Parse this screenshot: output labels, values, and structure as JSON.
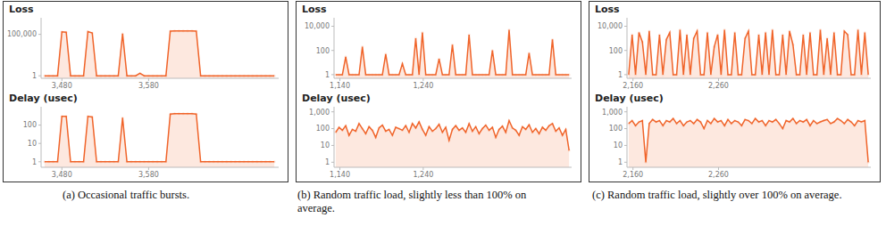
{
  "captions": [
    "(a) Occasional traffic bursts.",
    "(b) Random traffic load, slightly less than 100% on average.",
    "(c) Random traffic load, slightly over 100% on average."
  ],
  "chart_data": [
    {
      "type": "area",
      "title": "Loss",
      "color": "#f0642a",
      "marker": "circle",
      "log": "y",
      "x": [
        3460,
        3465,
        3470,
        3475,
        3480,
        3485,
        3490,
        3495,
        3500,
        3505,
        3510,
        3515,
        3520,
        3525,
        3530,
        3535,
        3540,
        3545,
        3550,
        3555,
        3560,
        3565,
        3570,
        3575,
        3580,
        3585,
        3590,
        3595,
        3600,
        3605,
        3610,
        3615,
        3620,
        3625,
        3630,
        3635,
        3640,
        3645,
        3650,
        3655,
        3660,
        3665,
        3670,
        3675,
        3680,
        3685,
        3690,
        3695,
        3700,
        3705,
        3710,
        3715,
        3720,
        3725
      ],
      "values": [
        1,
        1,
        1,
        1,
        200000,
        180000,
        1,
        1,
        1,
        1,
        220000,
        150000,
        1,
        1,
        1,
        1,
        1,
        1,
        120000,
        1,
        1,
        1,
        2,
        1,
        1,
        1,
        1,
        1,
        1,
        250000,
        260000,
        260000,
        260000,
        260000,
        260000,
        250000,
        1,
        1,
        1,
        1,
        1,
        1,
        1,
        1,
        1,
        1,
        1,
        1,
        1,
        1,
        1,
        1,
        1,
        1
      ],
      "xlim": [
        3456,
        3730
      ],
      "xticks": [
        {
          "value": 3480,
          "label": "3,480"
        },
        {
          "value": 3580,
          "label": "3,580"
        }
      ],
      "ylim": [
        0.5,
        10000000
      ],
      "yticks": [
        1,
        {
          "value": 100000,
          "label": "100,000"
        }
      ]
    },
    {
      "type": "area",
      "title": "Delay (usec)",
      "color": "#f0642a",
      "marker": "circle",
      "log": "y",
      "x": [
        3460,
        3465,
        3470,
        3475,
        3480,
        3485,
        3490,
        3495,
        3500,
        3505,
        3510,
        3515,
        3520,
        3525,
        3530,
        3535,
        3540,
        3545,
        3550,
        3555,
        3560,
        3565,
        3570,
        3575,
        3580,
        3585,
        3590,
        3595,
        3600,
        3605,
        3610,
        3615,
        3620,
        3625,
        3630,
        3635,
        3640,
        3645,
        3650,
        3655,
        3660,
        3665,
        3670,
        3675,
        3680,
        3685,
        3690,
        3695,
        3700,
        3705,
        3710,
        3715,
        3720,
        3725
      ],
      "values": [
        1,
        1,
        1,
        1,
        300,
        300,
        1,
        1,
        1,
        1,
        300,
        280,
        1,
        1,
        1,
        1,
        1,
        1,
        250,
        1,
        1,
        1,
        1,
        1,
        1,
        1,
        1,
        1,
        1,
        400,
        420,
        420,
        420,
        420,
        420,
        400,
        1,
        1,
        1,
        1,
        1,
        1,
        1,
        1,
        1,
        1,
        1,
        1,
        1,
        1,
        1,
        1,
        1,
        1
      ],
      "xlim": [
        3456,
        3730
      ],
      "xticks": [
        {
          "value": 3480,
          "label": "3,480"
        },
        {
          "value": 3580,
          "label": "3,580"
        }
      ],
      "ylim": [
        0.5,
        1000
      ],
      "yticks": [
        1,
        10,
        100
      ]
    },
    {
      "type": "area",
      "title": "Loss",
      "color": "#f0642a",
      "marker": "circle",
      "log": "y",
      "x": [
        1135,
        1139,
        1143,
        1147,
        1151,
        1155,
        1159,
        1163,
        1167,
        1171,
        1175,
        1179,
        1183,
        1187,
        1191,
        1195,
        1199,
        1203,
        1207,
        1211,
        1215,
        1219,
        1223,
        1227,
        1231,
        1235,
        1239,
        1243,
        1247,
        1251,
        1255,
        1259,
        1263,
        1267,
        1271,
        1275,
        1279,
        1283,
        1287,
        1291,
        1295,
        1299,
        1303,
        1307,
        1311,
        1315,
        1319,
        1323,
        1327,
        1331,
        1335,
        1339,
        1343,
        1347,
        1351,
        1355,
        1359,
        1363,
        1367,
        1371,
        1375,
        1379,
        1383,
        1387,
        1391,
        1395,
        1399,
        1403,
        1407,
        1411,
        1415
      ],
      "values": [
        1,
        1,
        1,
        30,
        1,
        1,
        1,
        1,
        200,
        1,
        1,
        1,
        1,
        1,
        1,
        50,
        1,
        1,
        1,
        1,
        8,
        1,
        1,
        1,
        1000,
        1,
        3000,
        1,
        1,
        1,
        1,
        20,
        1,
        1,
        1,
        300,
        1,
        1,
        1,
        1,
        2000,
        1,
        1,
        1,
        1,
        1,
        1,
        100,
        1,
        1,
        1,
        1,
        5000,
        1,
        1,
        1,
        1,
        1,
        60,
        1,
        1,
        1,
        1,
        1,
        1,
        800,
        1,
        1,
        1,
        1,
        1
      ],
      "xlim": [
        1133,
        1418
      ],
      "xticks": [
        {
          "value": 1140,
          "label": "1,140"
        },
        {
          "value": 1240,
          "label": "1,240"
        }
      ],
      "ylim": [
        0.5,
        50000
      ],
      "yticks": [
        1,
        100,
        {
          "value": 10000,
          "label": "10,000"
        }
      ]
    },
    {
      "type": "area",
      "title": "Delay (usec)",
      "color": "#f0642a",
      "marker": "circle",
      "log": "y",
      "x": [
        1135,
        1139,
        1143,
        1147,
        1151,
        1155,
        1159,
        1163,
        1167,
        1171,
        1175,
        1179,
        1183,
        1187,
        1191,
        1195,
        1199,
        1203,
        1207,
        1211,
        1215,
        1219,
        1223,
        1227,
        1231,
        1235,
        1239,
        1243,
        1247,
        1251,
        1255,
        1259,
        1263,
        1267,
        1271,
        1275,
        1279,
        1283,
        1287,
        1291,
        1295,
        1299,
        1303,
        1307,
        1311,
        1315,
        1319,
        1323,
        1327,
        1331,
        1335,
        1339,
        1343,
        1347,
        1351,
        1355,
        1359,
        1363,
        1367,
        1371,
        1375,
        1379,
        1383,
        1387,
        1391,
        1395,
        1399,
        1403,
        1407,
        1411,
        1415
      ],
      "values": [
        60,
        120,
        80,
        150,
        40,
        90,
        70,
        200,
        100,
        50,
        130,
        80,
        30,
        110,
        160,
        70,
        90,
        40,
        120,
        100,
        80,
        150,
        60,
        200,
        110,
        250,
        90,
        40,
        130,
        70,
        100,
        180,
        60,
        120,
        20,
        90,
        150,
        80,
        110,
        60,
        200,
        70,
        130,
        50,
        100,
        160,
        80,
        120,
        30,
        90,
        140,
        60,
        300,
        110,
        80,
        40,
        130,
        90,
        170,
        60,
        100,
        50,
        120,
        80,
        150,
        200,
        70,
        110,
        40,
        90,
        5
      ],
      "xlim": [
        1133,
        1418
      ],
      "xticks": [
        {
          "value": 1140,
          "label": "1,140"
        },
        {
          "value": 1240,
          "label": "1,240"
        }
      ],
      "ylim": [
        0.5,
        2000
      ],
      "yticks": [
        1,
        10,
        100,
        {
          "value": 1000,
          "label": "1,000"
        }
      ]
    },
    {
      "type": "area",
      "title": "Loss",
      "color": "#f0642a",
      "marker": "circle",
      "log": "y",
      "x": [
        2155,
        2159,
        2163,
        2167,
        2171,
        2175,
        2179,
        2183,
        2187,
        2191,
        2195,
        2199,
        2203,
        2207,
        2211,
        2215,
        2219,
        2223,
        2227,
        2231,
        2235,
        2239,
        2243,
        2247,
        2251,
        2255,
        2259,
        2263,
        2267,
        2271,
        2275,
        2279,
        2283,
        2287,
        2291,
        2295,
        2299,
        2303,
        2307,
        2311,
        2315,
        2319,
        2323,
        2327,
        2331,
        2335,
        2339,
        2343,
        2347,
        2351,
        2355,
        2359,
        2363,
        2367,
        2371,
        2375,
        2379,
        2383,
        2387,
        2391,
        2395,
        2399,
        2403,
        2407,
        2411,
        2415,
        2419,
        2423,
        2427,
        2431,
        2435
      ],
      "values": [
        1,
        2000,
        1,
        3000,
        500,
        1,
        4000,
        1,
        1,
        2000,
        1,
        800,
        3000,
        1,
        1,
        5000,
        1,
        2000,
        1,
        1000,
        4000,
        1,
        1,
        3000,
        1,
        200,
        2000,
        1,
        5000,
        1,
        1,
        3000,
        1,
        1,
        1000,
        4000,
        1,
        1,
        2000,
        1,
        3000,
        1,
        5000,
        1,
        1,
        2000,
        1,
        4000,
        300,
        1,
        1,
        2000,
        1,
        3000,
        1,
        1,
        5000,
        1,
        1000,
        1,
        3000,
        1,
        1,
        4000,
        2000,
        1,
        1,
        5000,
        1,
        3000,
        1
      ],
      "xlim": [
        2153,
        2438
      ],
      "xticks": [
        {
          "value": 2160,
          "label": "2,160"
        },
        {
          "value": 2260,
          "label": "2,260"
        }
      ],
      "ylim": [
        0.5,
        50000
      ],
      "yticks": [
        1,
        100,
        {
          "value": 10000,
          "label": "10,000"
        }
      ]
    },
    {
      "type": "area",
      "title": "Delay (usec)",
      "color": "#f0642a",
      "marker": "circle",
      "log": "y",
      "x": [
        2155,
        2159,
        2163,
        2167,
        2171,
        2175,
        2179,
        2183,
        2187,
        2191,
        2195,
        2199,
        2203,
        2207,
        2211,
        2215,
        2219,
        2223,
        2227,
        2231,
        2235,
        2239,
        2243,
        2247,
        2251,
        2255,
        2259,
        2263,
        2267,
        2271,
        2275,
        2279,
        2283,
        2287,
        2291,
        2295,
        2299,
        2303,
        2307,
        2311,
        2315,
        2319,
        2323,
        2327,
        2331,
        2335,
        2339,
        2343,
        2347,
        2351,
        2355,
        2359,
        2363,
        2367,
        2371,
        2375,
        2379,
        2383,
        2387,
        2391,
        2395,
        2399,
        2403,
        2407,
        2411,
        2415,
        2419,
        2423,
        2427,
        2431,
        2435
      ],
      "values": [
        200,
        300,
        150,
        250,
        300,
        1,
        200,
        350,
        250,
        300,
        150,
        300,
        250,
        400,
        200,
        300,
        150,
        250,
        300,
        200,
        350,
        250,
        100,
        300,
        200,
        400,
        250,
        300,
        150,
        350,
        200,
        300,
        250,
        150,
        350,
        300,
        200,
        400,
        250,
        300,
        150,
        300,
        250,
        350,
        200,
        100,
        300,
        250,
        400,
        200,
        300,
        250,
        350,
        150,
        300,
        200,
        250,
        300,
        350,
        200,
        250,
        400,
        300,
        200,
        350,
        250,
        150,
        300,
        250,
        300,
        1
      ],
      "xlim": [
        2153,
        2438
      ],
      "xticks": [
        {
          "value": 2160,
          "label": "2,160"
        },
        {
          "value": 2260,
          "label": "2,260"
        }
      ],
      "ylim": [
        0.5,
        2000
      ],
      "yticks": [
        1,
        10,
        100,
        {
          "value": 1000,
          "label": "1,000"
        }
      ]
    }
  ]
}
